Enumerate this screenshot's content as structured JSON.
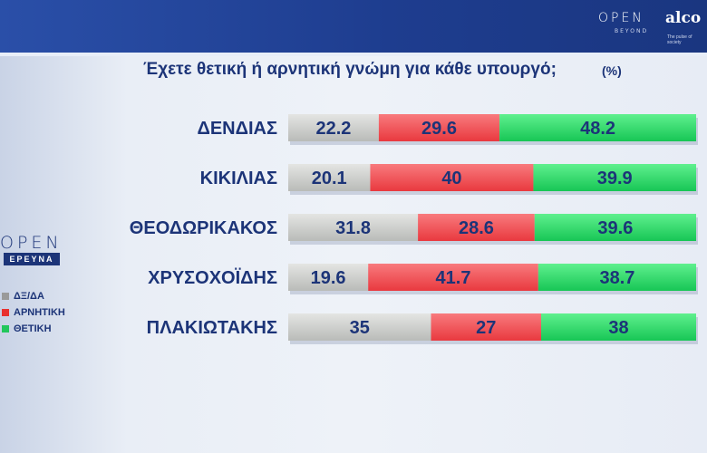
{
  "header": {
    "brand_open": "OPEN",
    "brand_beyond": "BEYOND",
    "brand_alco": "alco",
    "brand_tagline": "The pulse of society"
  },
  "title": "Έχετε θετική ή αρνητική γνώμη για κάθε υπουργό;",
  "unit": "(%)",
  "logo": {
    "open": "OPEN",
    "erevna": "ΕΡΕΥΝΑ"
  },
  "colors": {
    "dk": "#cdcfcd",
    "negative": "#f2545b",
    "positive": "#2fd86c",
    "label": "#1c3478"
  },
  "chart_data": {
    "type": "bar",
    "orientation": "horizontal",
    "stacked": true,
    "categories": [
      "ΔΕΝΔΙΑΣ",
      "ΚΙΚΙΛΙΑΣ",
      "ΘΕΟΔΩΡΙΚΑΚΟΣ",
      "ΧΡΥΣΟΧΟΪΔΗΣ",
      "ΠΛΑΚΙΩΤΑΚΗΣ"
    ],
    "series": [
      {
        "name": "ΔΞ/ΔΑ",
        "values": [
          22.2,
          20.1,
          31.8,
          19.6,
          35
        ]
      },
      {
        "name": "ΑΡΝΗΤΙΚΗ",
        "values": [
          29.6,
          40,
          28.6,
          41.7,
          27
        ]
      },
      {
        "name": "ΘΕΤΙΚΗ",
        "values": [
          48.2,
          39.9,
          39.6,
          38.7,
          38
        ]
      }
    ],
    "value_labels": [
      [
        "22.2",
        "29.6",
        "48.2"
      ],
      [
        "20.1",
        "40",
        "39.9"
      ],
      [
        "31.8",
        "28.6",
        "39.6"
      ],
      [
        "19.6",
        "41.7",
        "38.7"
      ],
      [
        "35",
        "27",
        "38"
      ]
    ],
    "total": 100,
    "legend_position": "left",
    "grid": false
  }
}
